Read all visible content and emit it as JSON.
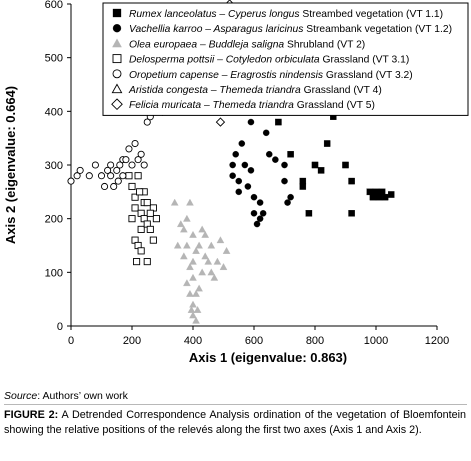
{
  "chart_data": {
    "type": "scatter",
    "xlabel": "Axis 1 (eigenvalue: 0.863)",
    "ylabel": "Axis 2 (eigenvalue: 0.664)",
    "xlim": [
      0,
      1200
    ],
    "ylim": [
      0,
      600
    ],
    "xticks": [
      "0",
      "200",
      "400",
      "600",
      "800",
      "1000",
      "1200"
    ],
    "yticks": [
      "0",
      "100",
      "200",
      "300",
      "400",
      "500",
      "600"
    ],
    "grid": false,
    "legend_position": "top-right",
    "series": [
      {
        "italic": "Rumex lanceolatus – Cyperus longus",
        "suffix": " Streambed vegetation (VT 1.1)",
        "marker": "filled-square",
        "color": "#000000",
        "points": [
          [
            620,
            450
          ],
          [
            680,
            380
          ],
          [
            720,
            320
          ],
          [
            760,
            270
          ],
          [
            760,
            260
          ],
          [
            800,
            300
          ],
          [
            780,
            210
          ],
          [
            820,
            290
          ],
          [
            840,
            410
          ],
          [
            840,
            340
          ],
          [
            860,
            390
          ],
          [
            880,
            450
          ],
          [
            900,
            300
          ],
          [
            910,
            420
          ],
          [
            920,
            270
          ],
          [
            920,
            210
          ],
          [
            980,
            250
          ],
          [
            990,
            240
          ],
          [
            1000,
            250
          ],
          [
            1010,
            240
          ],
          [
            1020,
            250
          ],
          [
            1030,
            240
          ],
          [
            1050,
            245
          ],
          [
            730,
            400
          ]
        ]
      },
      {
        "italic": "Vachellia karroo – Asparagus laricinus",
        "suffix": " Streambank vegetation (VT 1.2)",
        "marker": "filled-circle",
        "color": "#000000",
        "points": [
          [
            530,
            300
          ],
          [
            530,
            280
          ],
          [
            540,
            320
          ],
          [
            550,
            250
          ],
          [
            550,
            270
          ],
          [
            560,
            340
          ],
          [
            570,
            300
          ],
          [
            580,
            260
          ],
          [
            590,
            380
          ],
          [
            600,
            240
          ],
          [
            600,
            210
          ],
          [
            610,
            190
          ],
          [
            620,
            230
          ],
          [
            620,
            200
          ],
          [
            630,
            210
          ],
          [
            640,
            420
          ],
          [
            640,
            360
          ],
          [
            650,
            460
          ],
          [
            650,
            320
          ],
          [
            660,
            400
          ],
          [
            670,
            310
          ],
          [
            700,
            300
          ],
          [
            710,
            230
          ],
          [
            720,
            240
          ],
          [
            700,
            270
          ],
          [
            590,
            290
          ]
        ]
      },
      {
        "italic": "Olea europaea – Buddleja saligna",
        "suffix": " Shrubland (VT 2)",
        "marker": "filled-triangle",
        "color": "#b5b5b5",
        "points": [
          [
            340,
            230
          ],
          [
            360,
            190
          ],
          [
            350,
            150
          ],
          [
            370,
            180
          ],
          [
            380,
            200
          ],
          [
            380,
            150
          ],
          [
            390,
            230
          ],
          [
            390,
            110
          ],
          [
            400,
            170
          ],
          [
            400,
            120
          ],
          [
            400,
            90
          ],
          [
            410,
            140
          ],
          [
            410,
            60
          ],
          [
            400,
            40
          ],
          [
            400,
            20
          ],
          [
            410,
            10
          ],
          [
            420,
            150
          ],
          [
            430,
            100
          ],
          [
            440,
            130
          ],
          [
            450,
            120
          ],
          [
            460,
            150
          ],
          [
            470,
            90
          ],
          [
            480,
            120
          ],
          [
            490,
            160
          ],
          [
            500,
            110
          ],
          [
            510,
            140
          ],
          [
            430,
            180
          ],
          [
            370,
            130
          ],
          [
            380,
            80
          ],
          [
            420,
            70
          ],
          [
            390,
            60
          ],
          [
            440,
            170
          ],
          [
            460,
            100
          ],
          [
            395,
            30
          ],
          [
            415,
            30
          ]
        ]
      },
      {
        "italic": "Delosperma pottsii – Cotyledon orbiculata",
        "suffix": " Grassland (VT 3.1)",
        "marker": "open-square",
        "color": "#000000",
        "points": [
          [
            190,
            280
          ],
          [
            200,
            260
          ],
          [
            200,
            200
          ],
          [
            210,
            240
          ],
          [
            210,
            220
          ],
          [
            210,
            160
          ],
          [
            220,
            280
          ],
          [
            220,
            150
          ],
          [
            230,
            210
          ],
          [
            230,
            180
          ],
          [
            230,
            140
          ],
          [
            240,
            250
          ],
          [
            240,
            230
          ],
          [
            240,
            200
          ],
          [
            250,
            190
          ],
          [
            250,
            120
          ],
          [
            260,
            180
          ],
          [
            270,
            220
          ],
          [
            270,
            160
          ],
          [
            280,
            200
          ],
          [
            250,
            230
          ],
          [
            225,
            250
          ],
          [
            260,
            210
          ],
          [
            215,
            120
          ]
        ]
      },
      {
        "italic": "Oropetium capense – Eragrostis nindensis",
        "suffix": " Grassland (VT 3.2)",
        "marker": "open-circle",
        "color": "#000000",
        "points": [
          [
            0,
            270
          ],
          [
            20,
            280
          ],
          [
            30,
            290
          ],
          [
            60,
            280
          ],
          [
            80,
            300
          ],
          [
            100,
            280
          ],
          [
            110,
            260
          ],
          [
            120,
            290
          ],
          [
            130,
            280
          ],
          [
            140,
            260
          ],
          [
            150,
            290
          ],
          [
            160,
            300
          ],
          [
            170,
            310
          ],
          [
            180,
            310
          ],
          [
            190,
            330
          ],
          [
            200,
            300
          ],
          [
            210,
            340
          ],
          [
            220,
            310
          ],
          [
            230,
            320
          ],
          [
            240,
            300
          ],
          [
            250,
            380
          ],
          [
            260,
            390
          ],
          [
            280,
            410
          ],
          [
            280,
            440
          ],
          [
            290,
            480
          ],
          [
            170,
            280
          ],
          [
            130,
            300
          ],
          [
            155,
            270
          ]
        ]
      },
      {
        "italic": "Aristida congesta – Themeda triandra",
        "suffix": " Grassland (VT 4)",
        "marker": "open-triangle",
        "color": "#000000",
        "points": [
          [
            240,
            520
          ],
          [
            300,
            480
          ],
          [
            320,
            470
          ],
          [
            330,
            500
          ],
          [
            330,
            440
          ],
          [
            340,
            460
          ],
          [
            340,
            430
          ],
          [
            350,
            480
          ],
          [
            350,
            450
          ],
          [
            360,
            460
          ],
          [
            360,
            440
          ],
          [
            370,
            470
          ],
          [
            370,
            450
          ],
          [
            380,
            480
          ],
          [
            380,
            460
          ],
          [
            390,
            450
          ],
          [
            390,
            440
          ],
          [
            400,
            470
          ],
          [
            400,
            430
          ],
          [
            410,
            450
          ],
          [
            360,
            520
          ],
          [
            320,
            490
          ],
          [
            385,
            495
          ],
          [
            355,
            470
          ]
        ]
      },
      {
        "italic": "Felicia muricata – Themeda triandra",
        "suffix": " Grassland (VT 5)",
        "marker": "open-diamond",
        "color": "#000000",
        "points": [
          [
            300,
            400
          ],
          [
            320,
            420
          ],
          [
            340,
            430
          ],
          [
            350,
            440
          ],
          [
            360,
            460
          ],
          [
            370,
            450
          ],
          [
            380,
            470
          ],
          [
            380,
            440
          ],
          [
            390,
            480
          ],
          [
            390,
            460
          ],
          [
            400,
            490
          ],
          [
            400,
            430
          ],
          [
            410,
            500
          ],
          [
            410,
            450
          ],
          [
            420,
            480
          ],
          [
            420,
            510
          ],
          [
            430,
            460
          ],
          [
            430,
            520
          ],
          [
            440,
            440
          ],
          [
            450,
            490
          ],
          [
            460,
            410
          ],
          [
            470,
            450
          ],
          [
            480,
            470
          ],
          [
            490,
            380
          ],
          [
            500,
            440
          ],
          [
            510,
            460
          ],
          [
            520,
            600
          ],
          [
            540,
            480
          ],
          [
            550,
            500
          ],
          [
            400,
            510
          ],
          [
            445,
            475
          ],
          [
            365,
            485
          ]
        ]
      }
    ]
  },
  "source": {
    "label": "Source",
    "text": ": Authors’ own work"
  },
  "caption": {
    "label": "FIGURE 2:",
    "text": " A Detrended Correspondence Analysis ordination of the vegetation of Bloemfontein showing the relative positions of the relevés along the first two axes (Axis 1 and Axis 2)."
  }
}
